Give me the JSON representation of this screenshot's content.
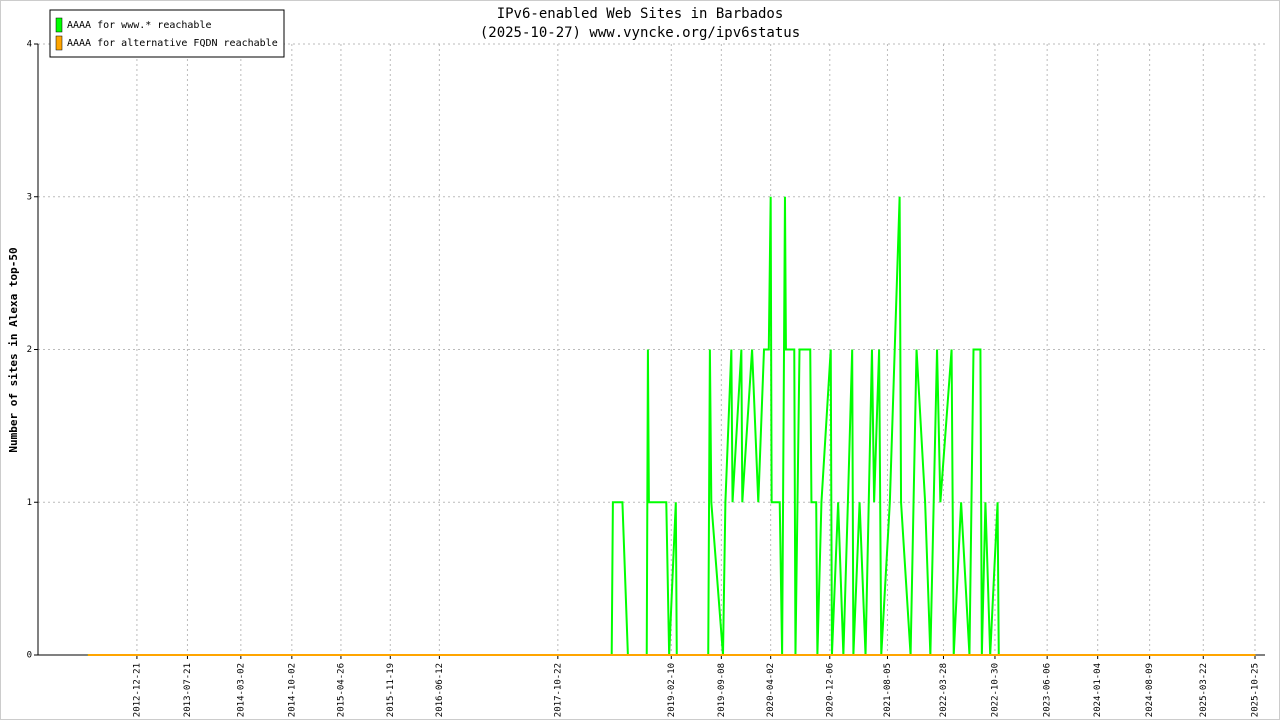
{
  "chart_data": {
    "type": "line",
    "title": "IPv6-enabled Web Sites in Barbados",
    "subtitle": "(2025-10-27) www.vyncke.org/ipv6status",
    "y_label": "Number of sites in Alexa top-50",
    "x": [
      "2012-05-29",
      "2018-06-05",
      "2018-06-10",
      "2018-07-20",
      "2018-08-12",
      "2018-10-30",
      "2018-11-04",
      "2018-11-08",
      "2019-01-20",
      "2019-02-01",
      "2019-03-01",
      "2019-03-05",
      "2019-07-15",
      "2019-07-22",
      "2019-07-28",
      "2019-09-15",
      "2019-09-25",
      "2019-10-20",
      "2019-10-25",
      "2019-12-01",
      "2019-12-05",
      "2020-01-15",
      "2020-02-10",
      "2020-03-05",
      "2020-03-25",
      "2020-04-02",
      "2020-04-06",
      "2020-05-10",
      "2020-05-20",
      "2020-06-01",
      "2020-06-05",
      "2020-07-10",
      "2020-07-15",
      "2020-08-01",
      "2020-09-15",
      "2020-09-20",
      "2020-10-10",
      "2020-10-15",
      "2020-11-01",
      "2020-12-10",
      "2020-12-15",
      "2021-01-10",
      "2021-02-01",
      "2021-02-20",
      "2021-03-10",
      "2021-03-15",
      "2021-04-10",
      "2021-05-05",
      "2021-06-01",
      "2021-06-10",
      "2021-07-01",
      "2021-07-10",
      "2021-08-15",
      "2021-09-25",
      "2021-10-01",
      "2021-11-10",
      "2021-12-05",
      "2022-01-10",
      "2022-02-01",
      "2022-03-01",
      "2022-03-15",
      "2022-05-01",
      "2022-05-10",
      "2022-06-10",
      "2022-07-15",
      "2022-08-01",
      "2022-08-30",
      "2022-09-05",
      "2022-09-20",
      "2022-10-10",
      "2022-11-10",
      "2022-11-15",
      "2025-10-27"
    ],
    "series": [
      {
        "name": "AAAA for www.* reachable",
        "color": "#00ff00",
        "values": [
          0,
          0,
          1,
          1,
          0,
          0,
          2,
          1,
          1,
          0,
          1,
          0,
          0,
          2,
          1,
          0,
          1,
          2,
          1,
          2,
          1,
          2,
          1,
          2,
          2,
          3,
          1,
          1,
          0,
          3,
          2,
          2,
          0,
          2,
          2,
          1,
          1,
          0,
          1,
          2,
          0,
          1,
          0,
          1,
          2,
          0,
          1,
          0,
          2,
          1,
          2,
          0,
          1,
          3,
          1,
          0,
          2,
          1,
          0,
          2,
          1,
          2,
          0,
          1,
          0,
          2,
          2,
          0,
          1,
          0,
          1,
          0,
          0
        ]
      },
      {
        "name": "AAAA for alternative FQDN reachable",
        "color": "#ffa500",
        "values": [
          0,
          0,
          0,
          0,
          0,
          0,
          0,
          0,
          0,
          0,
          0,
          0,
          0,
          0,
          0,
          0,
          0,
          0,
          0,
          0,
          0,
          0,
          0,
          0,
          0,
          0,
          0,
          0,
          0,
          0,
          0,
          0,
          0,
          0,
          0,
          0,
          0,
          0,
          0,
          0,
          0,
          0,
          0,
          0,
          0,
          0,
          0,
          0,
          0,
          0,
          0,
          0,
          0,
          0,
          0,
          0,
          0,
          0,
          0,
          0,
          0,
          0,
          0,
          0,
          0,
          0,
          0,
          0,
          0,
          0,
          0,
          0,
          0
        ]
      }
    ],
    "xlim": [
      "2011-11-02",
      "2025-12-06"
    ],
    "xticks": [
      "2012-12-21",
      "2013-07-21",
      "2014-03-02",
      "2014-10-02",
      "2015-04-26",
      "2015-11-19",
      "2016-06-12",
      "2017-10-22",
      "2019-02-10",
      "2019-09-08",
      "2020-04-02",
      "2020-12-06",
      "2021-08-05",
      "2022-03-28",
      "2022-10-30",
      "2023-06-06",
      "2024-01-04",
      "2024-08-09",
      "2025-03-22",
      "2025-10-25"
    ],
    "ylim": [
      0,
      4
    ],
    "yticks": [
      0,
      1,
      2,
      3,
      4
    ],
    "grid": true,
    "legend": "top-left"
  }
}
